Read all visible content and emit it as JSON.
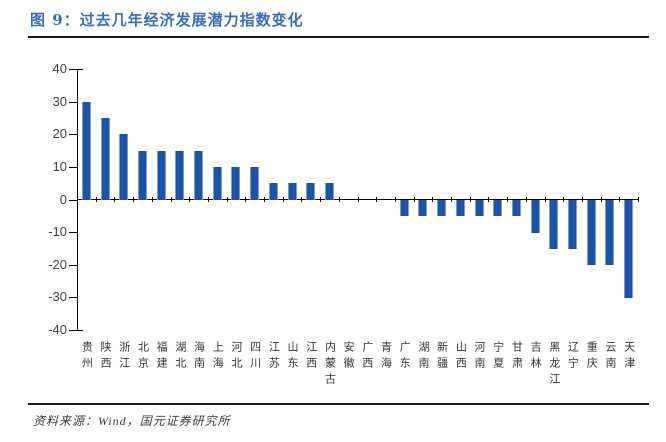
{
  "header": {
    "title": "图 9：过去几年经济发展潜力指数变化"
  },
  "footer": {
    "source": "资料来源：Wind，国元证券研究所"
  },
  "colors": {
    "title": "#3A6DB5",
    "bar": "#1A53A6",
    "bar_edge": "#7E9DCE",
    "divider": "#1A1A1A",
    "axis": "#000000",
    "tick_label": "#404040",
    "category_label": "#333333"
  },
  "chart_data": {
    "type": "bar",
    "title": "过去几年经济发展潜力指数变化",
    "categories": [
      "贵州",
      "陕西",
      "浙江",
      "北京",
      "福建",
      "湖北",
      "海南",
      "上海",
      "河北",
      "四川",
      "江苏",
      "山东",
      "江西",
      "内蒙古",
      "安徽",
      "广西",
      "青海",
      "广东",
      "湖南",
      "新疆",
      "山西",
      "河南",
      "宁夏",
      "甘肃",
      "吉林",
      "黑龙江",
      "辽宁",
      "重庆",
      "云南",
      "天津"
    ],
    "values": [
      30,
      25,
      20,
      15,
      15,
      15,
      15,
      10,
      10,
      10,
      5,
      5,
      5,
      5,
      0,
      0,
      0,
      -5,
      -5,
      -5,
      -5,
      -5,
      -5,
      -5,
      -10,
      -15,
      -15,
      -20,
      -20,
      -30
    ],
    "xlabel": "",
    "ylabel": "",
    "ylim": [
      -40,
      40
    ],
    "ytick_interval": 10,
    "yticks": [
      40,
      30,
      20,
      10,
      0,
      -10,
      -20,
      -30,
      -40
    ],
    "grid": false,
    "legend_position": "none",
    "bar_color": "#1A53A6"
  }
}
